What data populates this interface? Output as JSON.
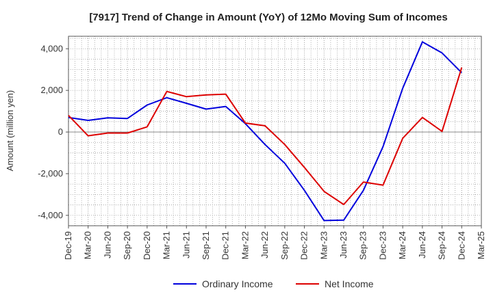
{
  "chart_data": {
    "type": "line",
    "title": "[7917]  Trend of Change in Amount (YoY) of 12Mo Moving Sum of Incomes",
    "ylabel": "Amount (million yen)",
    "xlabel": "",
    "ylim": [
      -4500,
      4600
    ],
    "yticks": [
      -4000,
      -2000,
      0,
      2000,
      4000
    ],
    "ytick_labels": [
      "-4,000",
      "-2,000",
      "0",
      "2,000",
      "4,000"
    ],
    "categories": [
      "Dec-19",
      "Mar-20",
      "Jun-20",
      "Sep-20",
      "Dec-20",
      "Mar-21",
      "Jun-21",
      "Sep-21",
      "Dec-21",
      "Mar-22",
      "Jun-22",
      "Sep-22",
      "Dec-22",
      "Mar-23",
      "Jun-23",
      "Sep-23",
      "Dec-23",
      "Mar-24",
      "Jun-24",
      "Sep-24",
      "Dec-24",
      "Mar-25"
    ],
    "grid": true,
    "legend_position": "bottom",
    "series": [
      {
        "name": "Ordinary Income",
        "color": "#0000dd",
        "values": [
          700,
          560,
          680,
          650,
          1300,
          1650,
          1380,
          1100,
          1230,
          400,
          -600,
          -1500,
          -2800,
          -4250,
          -4230,
          -2800,
          -700,
          2100,
          4330,
          3800,
          2850,
          null
        ]
      },
      {
        "name": "Net Income",
        "color": "#dd0000",
        "values": [
          800,
          -180,
          -50,
          -50,
          250,
          1950,
          1700,
          1780,
          1820,
          430,
          300,
          -600,
          -1700,
          -2850,
          -3480,
          -2400,
          -2550,
          -300,
          700,
          30,
          3100,
          null
        ]
      }
    ]
  }
}
